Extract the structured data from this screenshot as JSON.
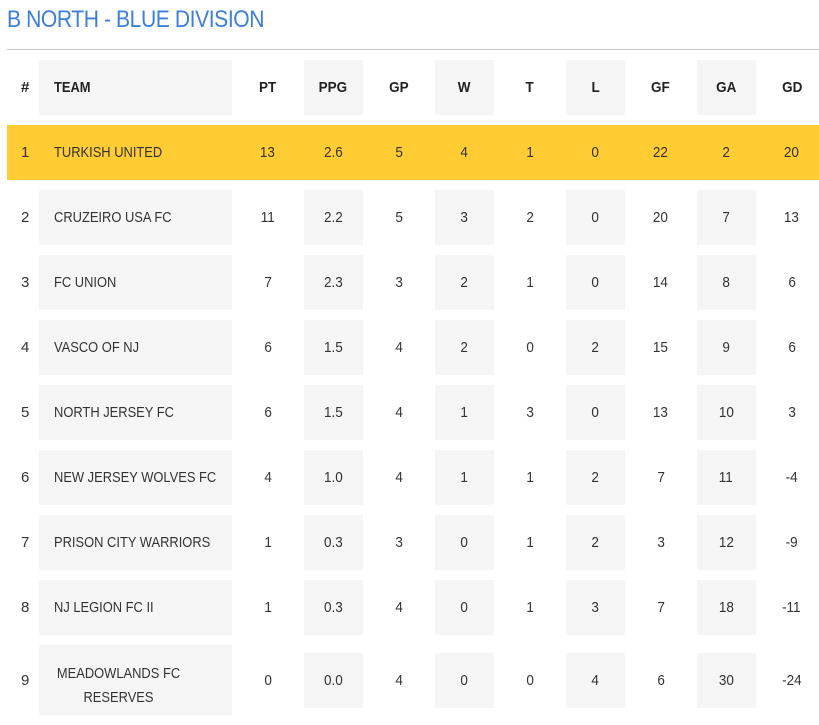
{
  "title": "B NORTH - BLUE DIVISION",
  "headers": {
    "rank": "#",
    "team": "TEAM",
    "pt": "PT",
    "ppg": "PPG",
    "gp": "GP",
    "w": "W",
    "t": "T",
    "l": "L",
    "gf": "GF",
    "ga": "GA",
    "gd": "GD"
  },
  "highlight_color": "#ffcc33",
  "title_color": "#3b7fd9",
  "rows": [
    {
      "rank": "1",
      "team": "TURKISH UNITED",
      "pt": "13",
      "ppg": "2.6",
      "gp": "5",
      "w": "4",
      "t": "1",
      "l": "0",
      "gf": "22",
      "ga": "2",
      "gd": "20"
    },
    {
      "rank": "2",
      "team": "CRUZEIRO USA FC",
      "pt": "11",
      "ppg": "2.2",
      "gp": "5",
      "w": "3",
      "t": "2",
      "l": "0",
      "gf": "20",
      "ga": "7",
      "gd": "13"
    },
    {
      "rank": "3",
      "team": "FC UNION",
      "pt": "7",
      "ppg": "2.3",
      "gp": "3",
      "w": "2",
      "t": "1",
      "l": "0",
      "gf": "14",
      "ga": "8",
      "gd": "6"
    },
    {
      "rank": "4",
      "team": "VASCO OF NJ",
      "pt": "6",
      "ppg": "1.5",
      "gp": "4",
      "w": "2",
      "t": "0",
      "l": "2",
      "gf": "15",
      "ga": "9",
      "gd": "6"
    },
    {
      "rank": "5",
      "team": "NORTH JERSEY FC",
      "pt": "6",
      "ppg": "1.5",
      "gp": "4",
      "w": "1",
      "t": "3",
      "l": "0",
      "gf": "13",
      "ga": "10",
      "gd": "3"
    },
    {
      "rank": "6",
      "team": "NEW JERSEY WOLVES FC",
      "pt": "4",
      "ppg": "1.0",
      "gp": "4",
      "w": "1",
      "t": "1",
      "l": "2",
      "gf": "7",
      "ga": "11",
      "gd": "-4"
    },
    {
      "rank": "7",
      "team": "PRISON CITY WARRIORS",
      "pt": "1",
      "ppg": "0.3",
      "gp": "3",
      "w": "0",
      "t": "1",
      "l": "2",
      "gf": "3",
      "ga": "12",
      "gd": "-9"
    },
    {
      "rank": "8",
      "team": "NJ LEGION FC II",
      "pt": "1",
      "ppg": "0.3",
      "gp": "4",
      "w": "0",
      "t": "1",
      "l": "3",
      "gf": "7",
      "ga": "18",
      "gd": "-11"
    },
    {
      "rank": "9",
      "team": "MEADOWLANDS FC RESERVES",
      "pt": "0",
      "ppg": "0.0",
      "gp": "4",
      "w": "0",
      "t": "0",
      "l": "4",
      "gf": "6",
      "ga": "30",
      "gd": "-24"
    }
  ]
}
